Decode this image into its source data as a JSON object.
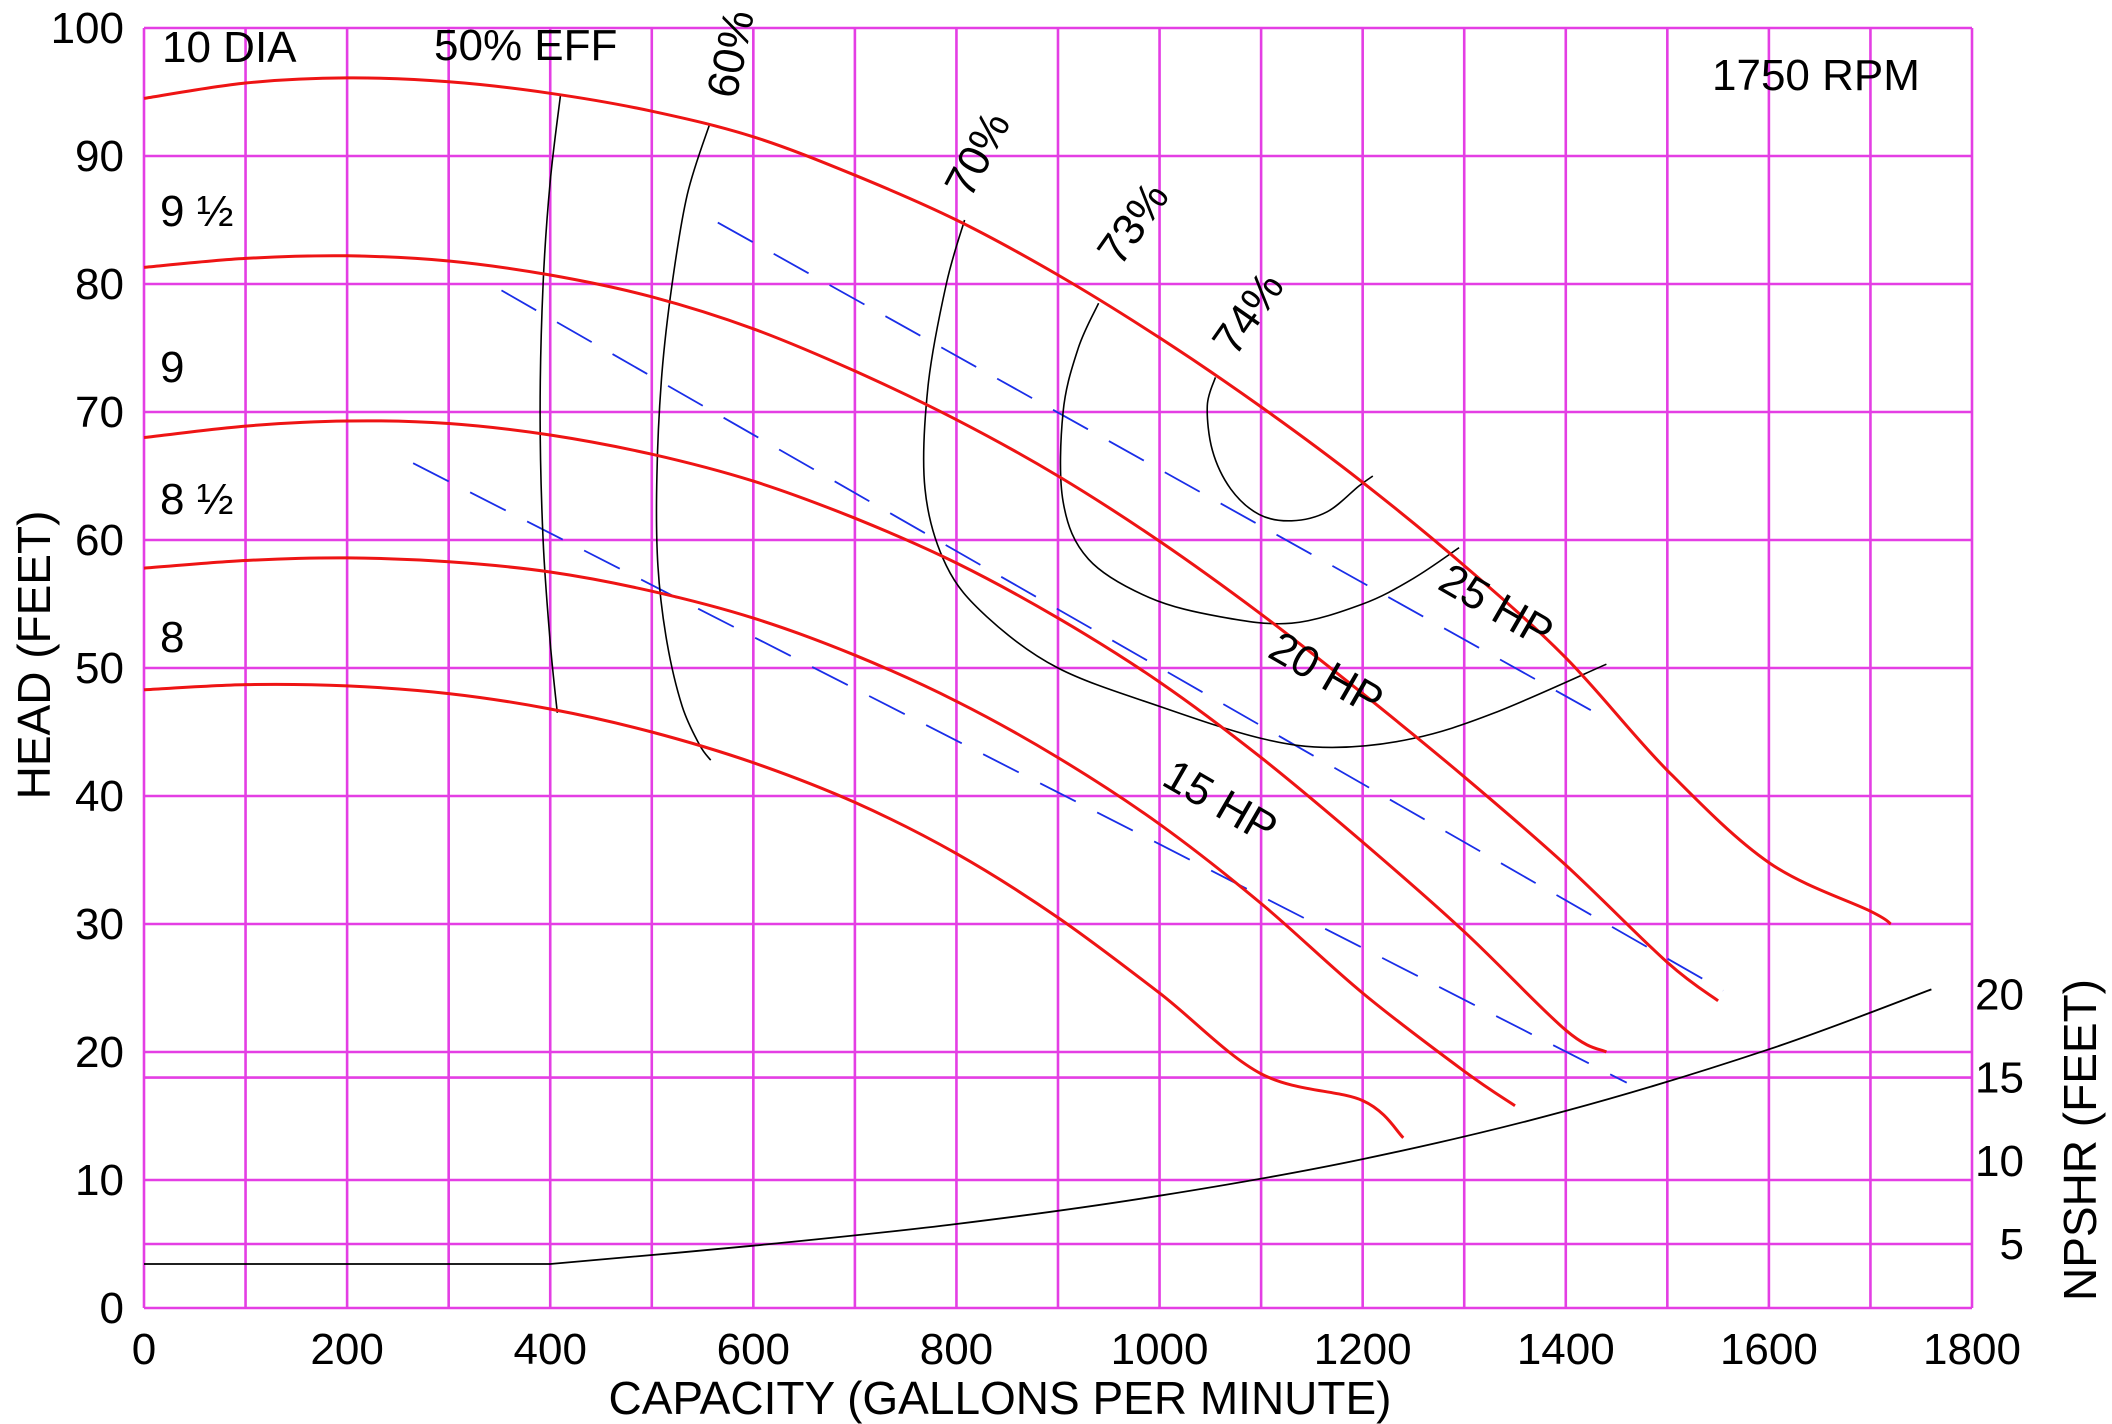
{
  "chart_data": {
    "type": "line",
    "title": "",
    "rpm_label": "1750 RPM",
    "xlabel": "CAPACITY (GALLONS PER MINUTE)",
    "ylabel": "HEAD (FEET)",
    "y2label": "NPSHR (FEET)",
    "xlim": [
      0,
      1800
    ],
    "ylim": [
      0,
      100
    ],
    "x_ticks": [
      "0",
      "200",
      "400",
      "600",
      "800",
      "1000",
      "1200",
      "1400",
      "1600",
      "1800"
    ],
    "y_ticks": [
      "0",
      "10",
      "20",
      "30",
      "40",
      "50",
      "60",
      "70",
      "80",
      "90",
      "100"
    ],
    "y2_ticks": [
      "5",
      "10",
      "15",
      "20"
    ],
    "grid": true,
    "colors": {
      "grid": "#e43ee4",
      "diameter_curves": "#ee1414",
      "hp_lines": "#1a2ee8",
      "efficiency_curves": "#000000",
      "npshr_curve": "#000000"
    },
    "diameter_curves": [
      {
        "name": "10 DIA",
        "x": [
          0,
          100,
          200,
          300,
          400,
          500,
          600,
          700,
          800,
          900,
          1000,
          1100,
          1200,
          1300,
          1400,
          1500,
          1600,
          1700,
          1720
        ],
        "y": [
          94.5,
          95.7,
          96.1,
          95.8,
          94.9,
          93.5,
          91.5,
          88.5,
          85.0,
          80.7,
          75.8,
          70.4,
          64.5,
          58.0,
          50.8,
          42.0,
          34.8,
          31.0,
          30.0
        ]
      },
      {
        "name": "9 ½",
        "x": [
          0,
          100,
          200,
          300,
          400,
          500,
          600,
          700,
          800,
          900,
          1000,
          1100,
          1200,
          1300,
          1400,
          1500,
          1550
        ],
        "y": [
          81.3,
          82.0,
          82.2,
          81.8,
          80.7,
          79.0,
          76.5,
          73.2,
          69.4,
          65.0,
          59.9,
          54.2,
          48.0,
          41.5,
          34.6,
          27.0,
          24.0
        ]
      },
      {
        "name": "9",
        "x": [
          0,
          100,
          200,
          300,
          400,
          500,
          600,
          700,
          800,
          900,
          1000,
          1100,
          1200,
          1300,
          1400,
          1440
        ],
        "y": [
          68.0,
          68.9,
          69.3,
          69.1,
          68.2,
          66.7,
          64.6,
          61.7,
          58.2,
          53.9,
          48.9,
          43.0,
          36.4,
          29.4,
          21.7,
          20.0
        ]
      },
      {
        "name": "8 ½",
        "x": [
          0,
          100,
          200,
          300,
          400,
          500,
          600,
          700,
          800,
          900,
          1000,
          1100,
          1200,
          1300,
          1350
        ],
        "y": [
          57.8,
          58.4,
          58.6,
          58.3,
          57.5,
          56.0,
          53.9,
          51.0,
          47.4,
          43.0,
          37.8,
          31.6,
          24.6,
          18.5,
          15.8
        ]
      },
      {
        "name": "8",
        "x": [
          0,
          100,
          200,
          300,
          400,
          500,
          600,
          700,
          800,
          900,
          1000,
          1100,
          1200,
          1240
        ],
        "y": [
          48.3,
          48.7,
          48.6,
          48.0,
          46.8,
          45.0,
          42.6,
          39.5,
          35.5,
          30.5,
          24.6,
          18.3,
          16.2,
          13.3
        ]
      }
    ],
    "efficiency_curves": [
      {
        "name": "50% EFF",
        "label": "50% EFF",
        "x": [
          410,
          400,
          393,
          390,
          393,
          400,
          407
        ],
        "y": [
          94.7,
          88.0,
          80.0,
          70.0,
          60.0,
          52.0,
          46.5
        ]
      },
      {
        "name": "60%",
        "label": "60%",
        "x": [
          557,
          535,
          520,
          510,
          505,
          506,
          515,
          530,
          547,
          558
        ],
        "y": [
          92.5,
          87.0,
          80.0,
          73.0,
          65.0,
          58.0,
          52.0,
          47.0,
          44.0,
          42.8
        ]
      },
      {
        "name": "70%",
        "label": "70%",
        "x": [
          808,
          790,
          772,
          769,
          790,
          830,
          900,
          1000,
          1100,
          1170,
          1250,
          1330,
          1440
        ],
        "y": [
          85.0,
          80.0,
          72.0,
          64.0,
          58.0,
          54.0,
          50.0,
          47.0,
          44.5,
          43.8,
          44.5,
          46.5,
          50.3
        ]
      },
      {
        "name": "73%",
        "label": "73%",
        "x": [
          940,
          920,
          905,
          905,
          930,
          990,
          1060,
          1130,
          1200,
          1250,
          1295
        ],
        "y": [
          78.5,
          75.0,
          70.0,
          63.0,
          58.5,
          55.5,
          54.0,
          53.5,
          55.0,
          57.0,
          59.4
        ]
      },
      {
        "name": "74%",
        "label": "74%",
        "x": [
          1055,
          1047,
          1052,
          1070,
          1098,
          1130,
          1165,
          1196,
          1210
        ],
        "y": [
          72.7,
          70.5,
          67.0,
          64.0,
          62.0,
          61.5,
          62.2,
          64.2,
          65.0
        ]
      }
    ],
    "hp_lines": [
      {
        "name": "25 HP",
        "label": "25 HP",
        "x": [
          565,
          1445
        ],
        "y": [
          84.8,
          45.8
        ]
      },
      {
        "name": "20 HP",
        "label": "20 HP",
        "x": [
          352,
          1555
        ],
        "y": [
          79.5,
          24.8
        ]
      },
      {
        "name": "15 HP",
        "label": "15 HP",
        "x": [
          265,
          1460
        ],
        "y": [
          66.0,
          17.6
        ]
      }
    ],
    "npshr_curve": {
      "name": "NPSHR",
      "x": [
        0,
        200,
        400,
        600,
        800,
        1000,
        1200,
        1400,
        1600,
        1760
      ],
      "y": [
        3.8,
        3.8,
        3.8,
        4.9,
        6.2,
        7.9,
        10.1,
        13.0,
        16.7,
        20.3
      ]
    }
  }
}
